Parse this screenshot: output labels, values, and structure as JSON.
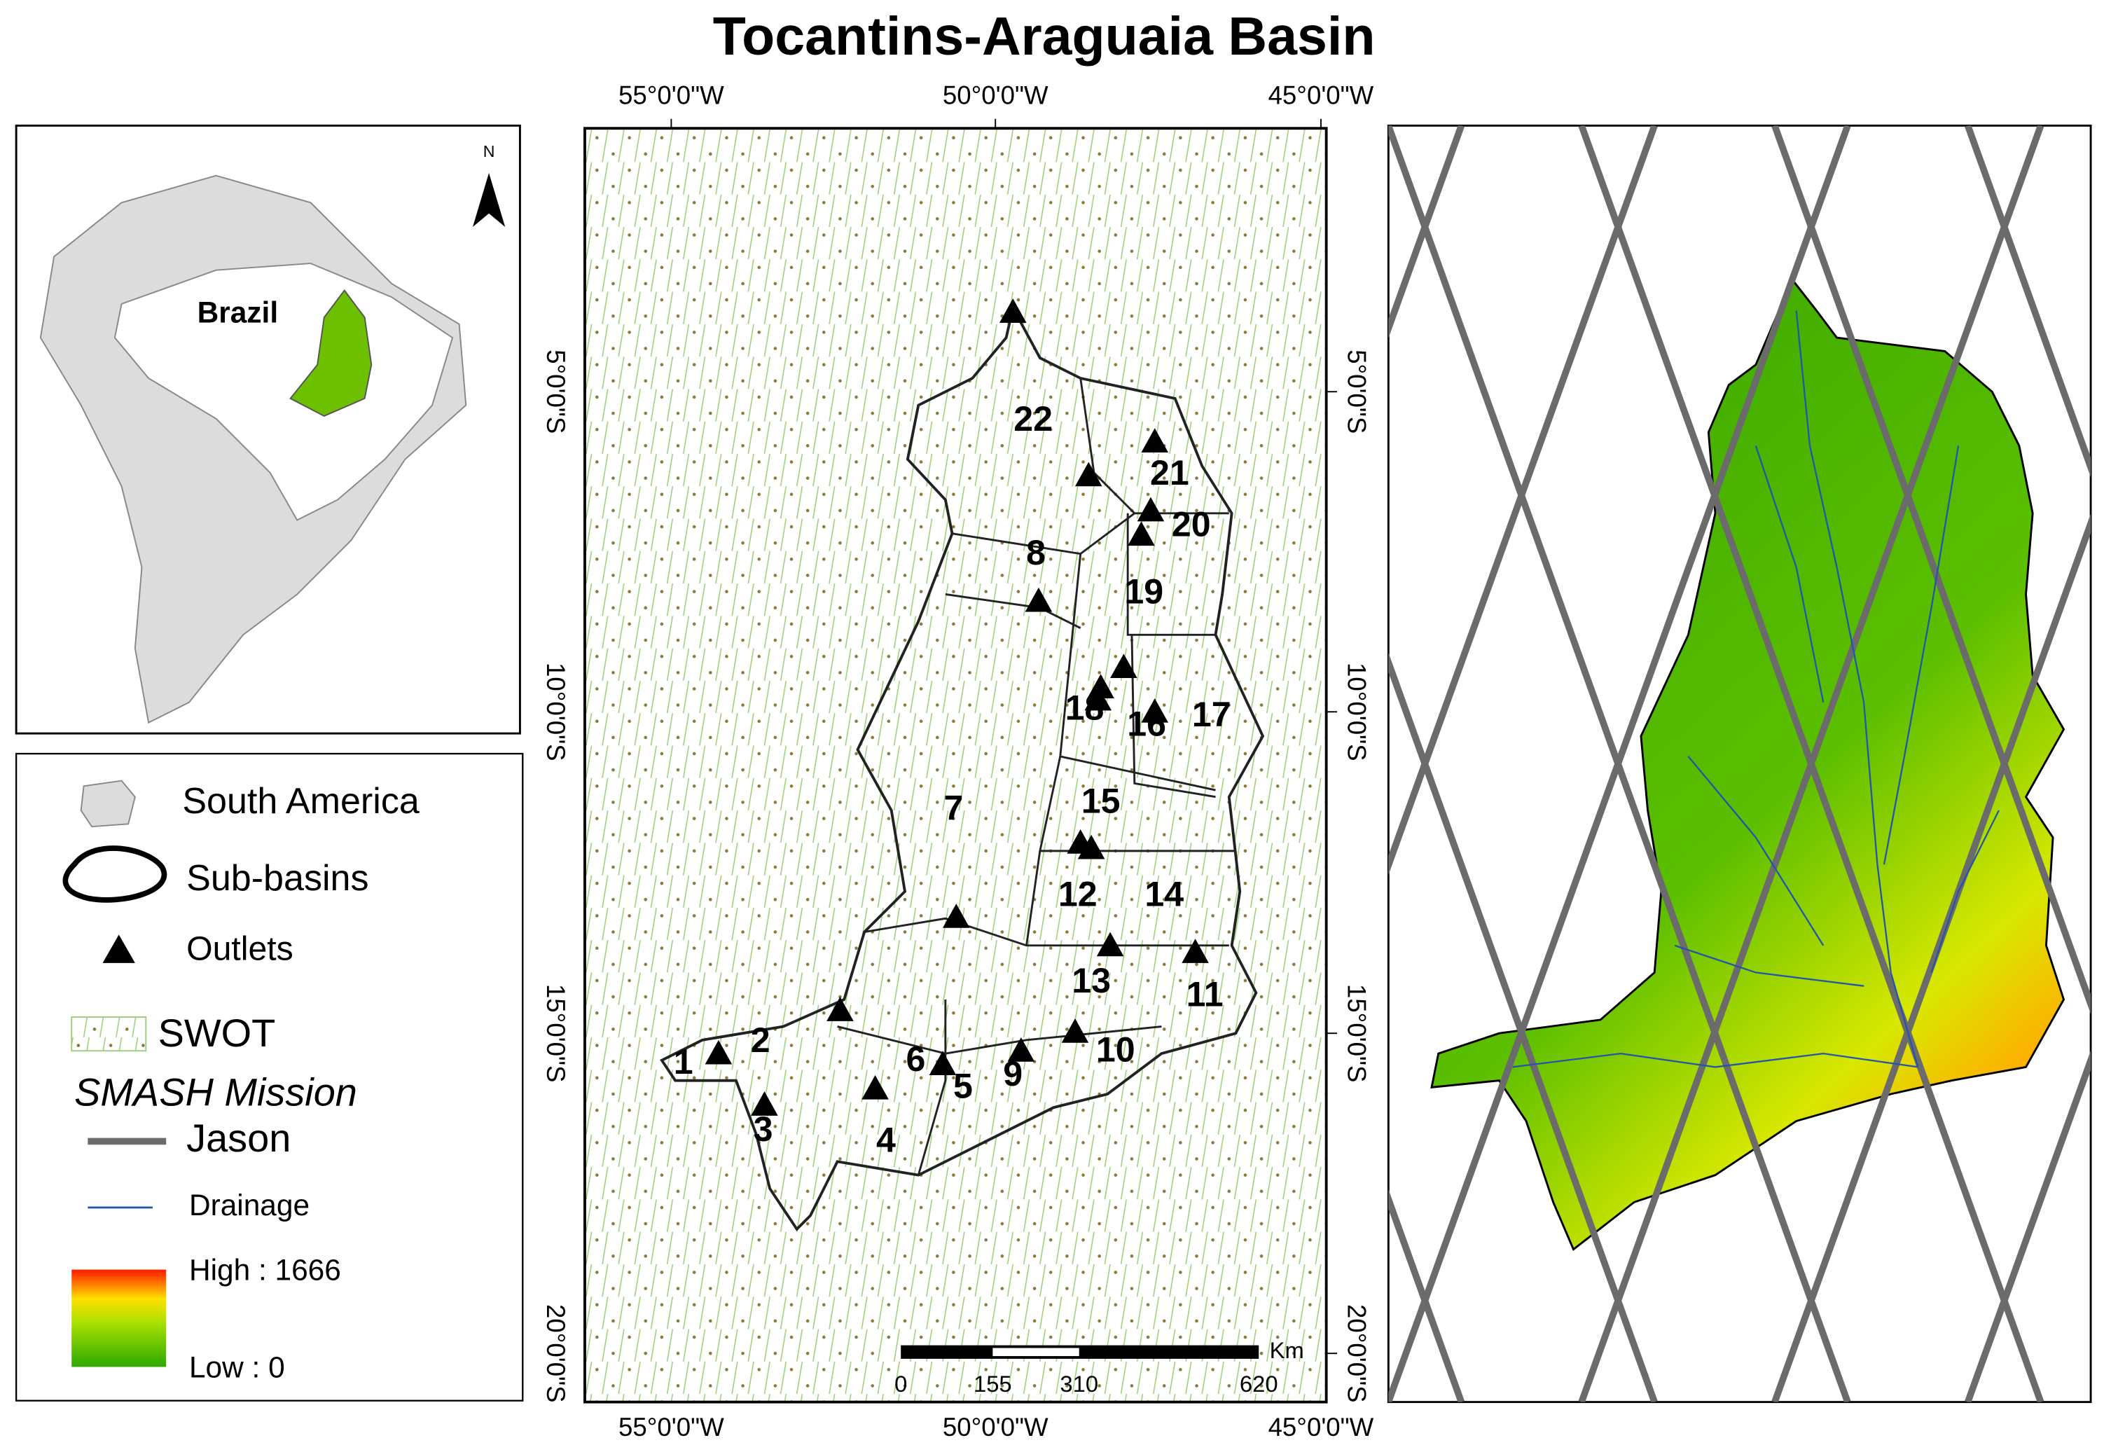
{
  "title": "Tocantins-Araguaia Basin",
  "inset": {
    "country_label": "Brazil",
    "north_label": "N"
  },
  "map": {
    "lon_labels": [
      "55°0'0\"W",
      "50°0'0\"W",
      "45°0'0\"W"
    ],
    "lat_labels": [
      "5°0'0\"S",
      "10°0'0\"S",
      "15°0'0\"S",
      "20°0'0\"S"
    ],
    "subbasins": [
      "1",
      "2",
      "3",
      "4",
      "5",
      "6",
      "7",
      "8",
      "9",
      "10",
      "11",
      "12",
      "13",
      "14",
      "15",
      "16",
      "17",
      "18",
      "19",
      "20",
      "21",
      "22"
    ]
  },
  "legend": {
    "items": [
      "South America",
      "Sub-basins",
      "Outlets",
      "SWOT",
      "SMASH Mission",
      "Jason",
      "Drainage"
    ],
    "elevation_high": "High : 1666",
    "elevation_low": "Low : 0"
  },
  "scale_bar": {
    "unit": "Km",
    "labels": [
      "0",
      "155",
      "310",
      "620"
    ]
  }
}
